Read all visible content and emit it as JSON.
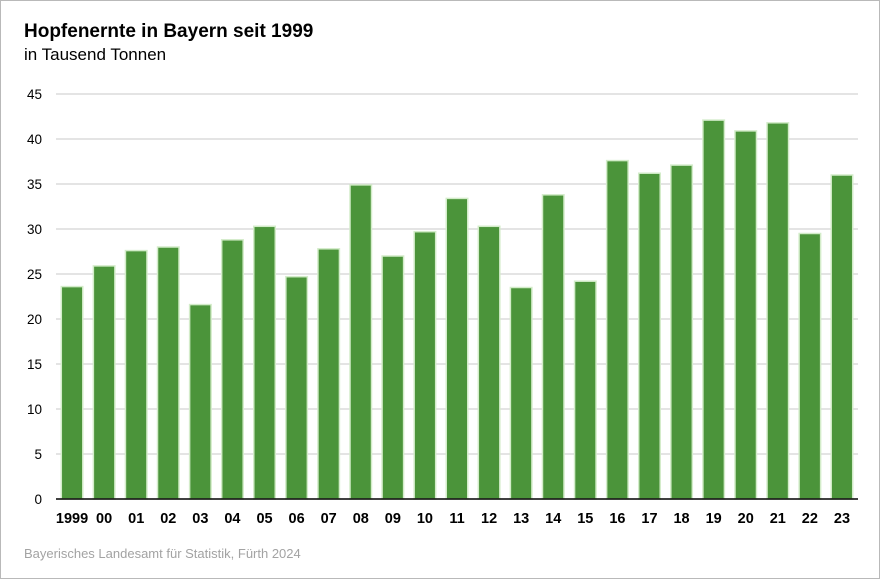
{
  "chart_data": {
    "type": "bar",
    "title": "Hopfenernte in Bayern seit 1999",
    "subtitle": "in Tausend Tonnen",
    "source": "Bayerisches Landesamt für Statistik, Fürth 2024",
    "categories": [
      "1999",
      "00",
      "01",
      "02",
      "03",
      "04",
      "05",
      "06",
      "07",
      "08",
      "09",
      "10",
      "11",
      "12",
      "13",
      "14",
      "15",
      "16",
      "17",
      "18",
      "19",
      "20",
      "21",
      "22",
      "23"
    ],
    "values": [
      23.6,
      25.9,
      27.6,
      28.0,
      21.6,
      28.8,
      30.3,
      24.7,
      27.8,
      34.9,
      27.0,
      29.7,
      33.4,
      30.3,
      23.5,
      33.8,
      24.2,
      37.6,
      36.2,
      37.1,
      42.1,
      40.9,
      41.8,
      29.5,
      36.0
    ],
    "ylim": [
      0,
      45
    ],
    "yticks": [
      0,
      5,
      10,
      15,
      20,
      25,
      30,
      35,
      40,
      45
    ],
    "xlabel": "",
    "ylabel": "",
    "grid": true,
    "bar_color": "#4b943a",
    "bar_outline_color": "#d3ecc9",
    "grid_color": "#c8c8c8",
    "axis_color": "#000000"
  }
}
